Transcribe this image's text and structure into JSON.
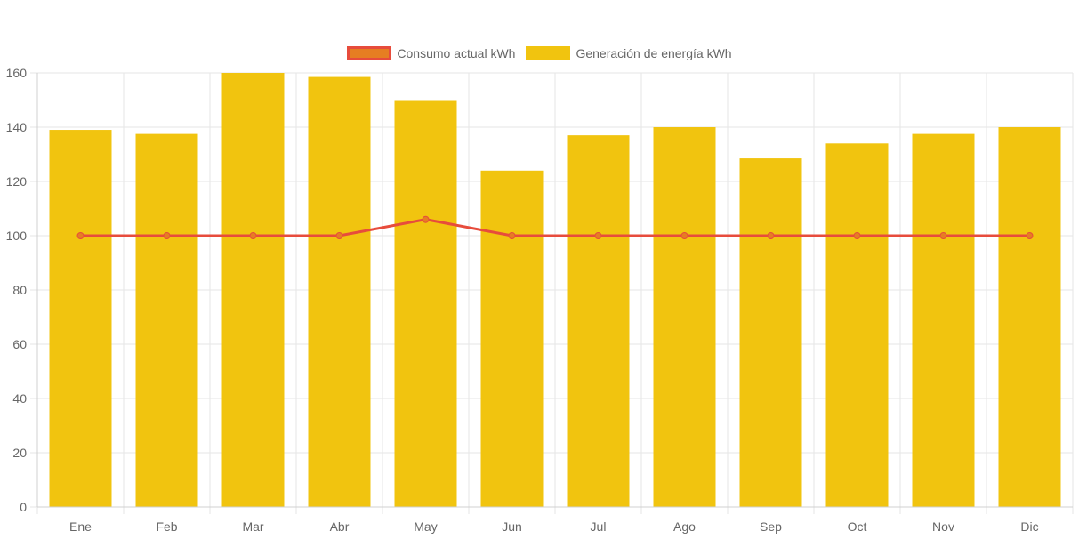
{
  "chart_data": {
    "type": "bar",
    "title": "",
    "xlabel": "",
    "ylabel": "",
    "ylim": [
      0,
      160
    ],
    "yticks": [
      0,
      20,
      40,
      60,
      80,
      100,
      120,
      140,
      160
    ],
    "grid": true,
    "legend_position": "top-center",
    "categories": [
      "Ene",
      "Feb",
      "Mar",
      "Abr",
      "May",
      "Jun",
      "Jul",
      "Ago",
      "Sep",
      "Oct",
      "Nov",
      "Dic"
    ],
    "series": [
      {
        "name": "Consumo actual kWh",
        "type": "line",
        "line_color": "#e74c3c",
        "point_color": "#e67e22",
        "values": [
          100,
          100,
          100,
          100,
          106,
          100,
          100,
          100,
          100,
          100,
          100,
          100
        ]
      },
      {
        "name": "Generación de energía kWh",
        "type": "bar",
        "color": "#f1c40f",
        "values": [
          139,
          137.5,
          160,
          158.5,
          150,
          124,
          137,
          140,
          128.5,
          134,
          137.5,
          140
        ]
      }
    ]
  },
  "legend": [
    {
      "label": "Consumo actual kWh",
      "fill": "#e67e22",
      "border": "#e74c3c"
    },
    {
      "label": "Generación de energía kWh",
      "fill": "#f1c40f",
      "border": "#f1c40f"
    }
  ]
}
